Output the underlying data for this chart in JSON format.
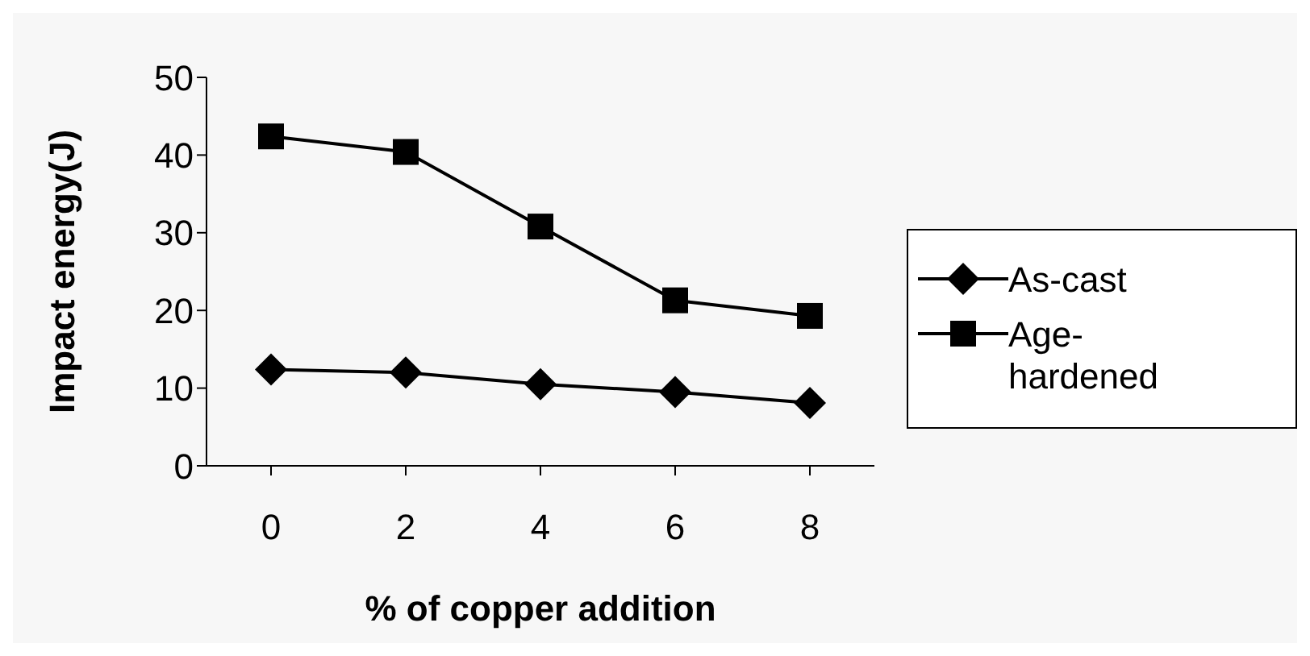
{
  "chart_data": {
    "type": "line",
    "xlabel": "% of copper addition",
    "ylabel": "Impact energy(J)",
    "categories": [
      "0",
      "2",
      "4",
      "6",
      "8"
    ],
    "series": [
      {
        "name": "As-cast",
        "color": "#000000",
        "marker": "diamond",
        "values": [
          12.4,
          12.0,
          10.5,
          9.5,
          8.1
        ]
      },
      {
        "name": "Age-hardened",
        "color": "#000000",
        "marker": "square",
        "values": [
          42.4,
          40.4,
          30.8,
          21.3,
          19.3
        ]
      }
    ],
    "ylim": [
      0,
      50
    ],
    "yticks": [
      0,
      10,
      20,
      30,
      40,
      50
    ],
    "legend": "right",
    "line_style": "solid"
  }
}
